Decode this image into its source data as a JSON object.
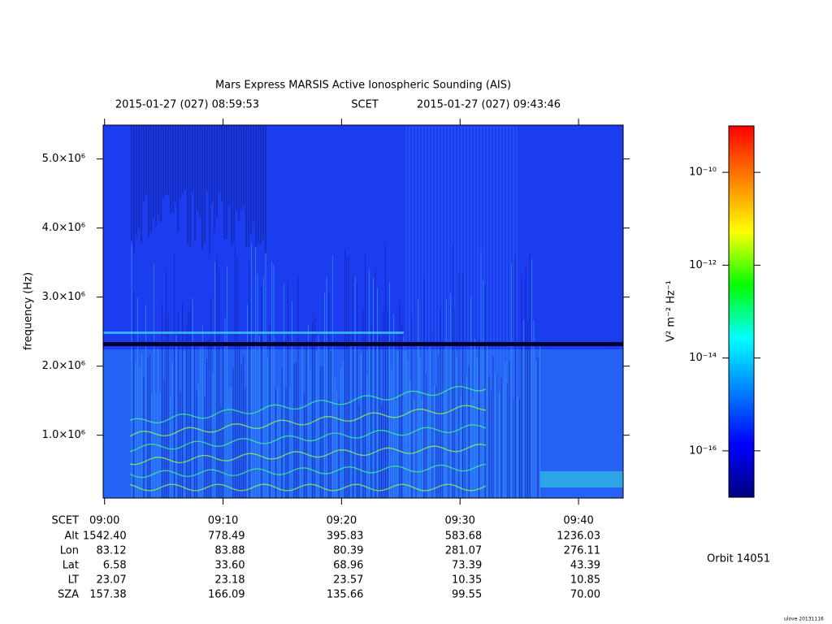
{
  "chart_data": {
    "type": "spectrogram",
    "title": "Mars Express MARSIS Active Ionospheric Sounding (AIS)",
    "start_time": "2015-01-27 (027) 08:59:53",
    "time_system": "SCET",
    "end_time": "2015-01-27 (027) 09:43:46",
    "y_label": "frequency (Hz)",
    "ylim": [
      90000,
      5490000
    ],
    "yticks": [
      {
        "value": 1000000,
        "label": "1.0×10⁶"
      },
      {
        "value": 2000000,
        "label": "2.0×10⁶"
      },
      {
        "value": 3000000,
        "label": "3.0×10⁶"
      },
      {
        "value": 4000000,
        "label": "4.0×10⁶"
      },
      {
        "value": 5000000,
        "label": "5.0×10⁶"
      }
    ],
    "xticks": [
      "09:00",
      "09:10",
      "09:20",
      "09:30",
      "09:40"
    ],
    "ephemeris": {
      "time_label": "SCET",
      "row_labels": [
        "Alt",
        "Lon",
        "Lat",
        "LT",
        "SZA"
      ],
      "rows": [
        [
          "1542.40",
          "778.49",
          "395.83",
          "583.68",
          "1236.03"
        ],
        [
          "83.12",
          "83.88",
          "80.39",
          "281.07",
          "276.11"
        ],
        [
          "6.58",
          "33.60",
          "68.96",
          "73.39",
          "43.39"
        ],
        [
          "23.07",
          "23.18",
          "23.57",
          "10.35",
          "10.85"
        ],
        [
          "157.38",
          "166.09",
          "135.66",
          "99.55",
          "70.00"
        ]
      ]
    },
    "colorbar": {
      "label": "V² m⁻² Hz⁻¹",
      "log_scale": true,
      "clim": [
        1e-17,
        1e-09
      ],
      "ticks": [
        {
          "value": 1e-10,
          "label": "10⁻¹⁰"
        },
        {
          "value": 1e-12,
          "label": "10⁻¹²"
        },
        {
          "value": 1e-14,
          "label": "10⁻¹⁴"
        },
        {
          "value": 1e-16,
          "label": "10⁻¹⁶"
        }
      ],
      "colormap": [
        "#000080",
        "#0000ff",
        "#0080ff",
        "#00ffff",
        "#00ff00",
        "#ffff00",
        "#ff8000",
        "#ff0000"
      ]
    },
    "orbit": "Orbit 14051",
    "footer": "ulove 20131116"
  }
}
